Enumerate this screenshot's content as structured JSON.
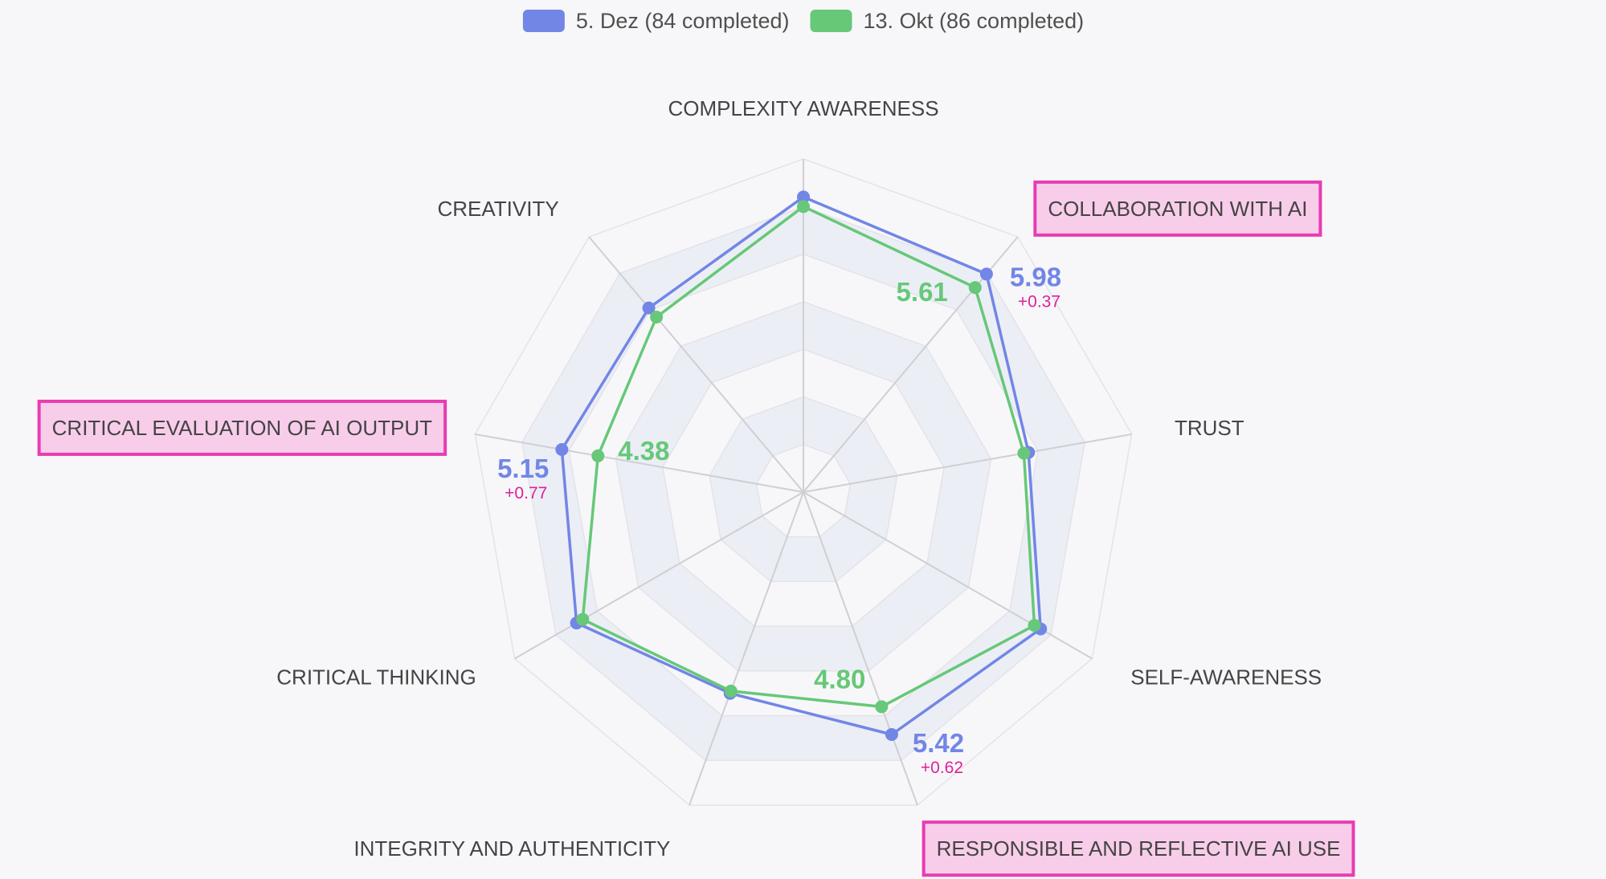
{
  "chart_data": {
    "type": "radar",
    "title": "",
    "scale": {
      "min": 0,
      "max": 7,
      "rings": 7
    },
    "axes": [
      "COMPLEXITY AWARENESS",
      "COLLABORATION WITH AI",
      "TRUST",
      "SELF-AWARENESS",
      "RESPONSIBLE AND REFLECTIVE AI USE",
      "INTEGRITY AND AUTHENTICITY",
      "CRITICAL THINKING",
      "CRITICAL EVALUATION OF AI OUTPUT",
      "CREATIVITY"
    ],
    "highlighted_axes": [
      "COLLABORATION WITH AI",
      "RESPONSIBLE AND REFLECTIVE AI USE",
      "CRITICAL EVALUATION OF AI OUTPUT"
    ],
    "legend_position": "top-center",
    "series": [
      {
        "name": "5. Dez (84 completed)",
        "color": "#7286e6",
        "values": [
          6.2,
          5.98,
          4.8,
          5.75,
          5.42,
          4.5,
          5.5,
          5.15,
          5.05
        ]
      },
      {
        "name": "13. Okt (86 completed)",
        "color": "#66c878",
        "values": [
          6.0,
          5.61,
          4.7,
          5.6,
          4.8,
          4.45,
          5.35,
          4.38,
          4.8
        ]
      }
    ],
    "annotations": [
      {
        "axis": "COLLABORATION WITH AI",
        "new": "5.98",
        "old": "5.61",
        "delta": "+0.37"
      },
      {
        "axis": "CRITICAL EVALUATION OF AI OUTPUT",
        "new": "5.15",
        "old": "4.38",
        "delta": "+0.77"
      },
      {
        "axis": "RESPONSIBLE AND REFLECTIVE AI USE",
        "new": "5.42",
        "old": "4.80",
        "delta": "+0.62"
      }
    ],
    "colors": {
      "highlight_border": "#e83cb4",
      "highlight_fill": "#f8cdea",
      "delta": "#e0209a"
    }
  }
}
